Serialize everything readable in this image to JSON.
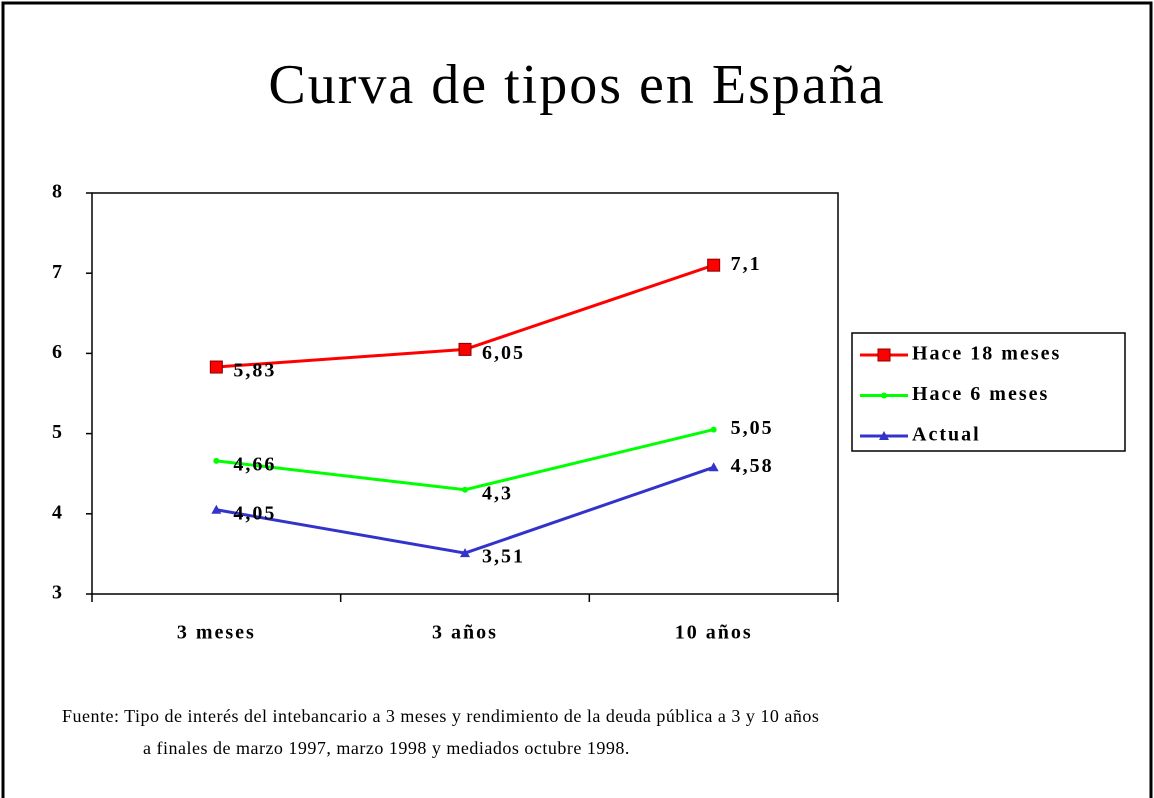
{
  "chart_data": {
    "type": "line",
    "title": "Curva de tipos en España",
    "categories": [
      "3 meses",
      "3 años",
      "10 años"
    ],
    "series": [
      {
        "name": "Hace 18 meses",
        "color": "#ff0000",
        "marker": "square",
        "values": [
          5.83,
          6.05,
          7.1
        ],
        "value_labels": [
          "5,83",
          "6,05",
          "7,1"
        ]
      },
      {
        "name": "Hace 6 meses",
        "color": "#00ff00",
        "marker": "circle",
        "values": [
          4.66,
          4.3,
          5.05
        ],
        "value_labels": [
          "4,66",
          "4,3",
          "5,05"
        ]
      },
      {
        "name": "Actual",
        "color": "#3333cc",
        "marker": "triangle",
        "values": [
          4.05,
          3.51,
          4.58
        ],
        "value_labels": [
          "4,05",
          "3,51",
          "4,58"
        ]
      }
    ],
    "ylim": [
      3,
      8
    ],
    "yticks": [
      3,
      4,
      5,
      6,
      7,
      8
    ],
    "grid": false,
    "legend": "right",
    "note": [
      "Fuente: Tipo de interés del intebancario a 3 meses y rendimiento de la deuda pública a 3 y 10 años",
      "a finales de marzo 1997, marzo 1998 y mediados octubre 1998."
    ]
  }
}
